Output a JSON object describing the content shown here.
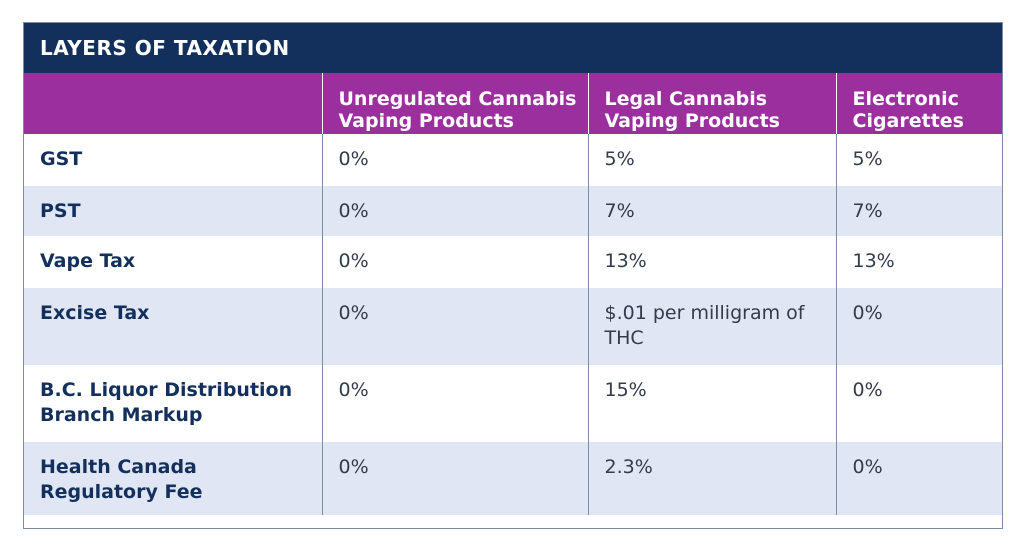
{
  "title": "LAYERS OF TAXATION",
  "columns": [
    "",
    "Unregulated Cannabis Vaping Products",
    "Legal Cannabis Vaping Products",
    "Electronic Cigarettes"
  ],
  "rows": [
    {
      "label": "GST",
      "values": [
        "0%",
        "5%",
        "5%"
      ]
    },
    {
      "label": "PST",
      "values": [
        "0%",
        "7%",
        "7%"
      ]
    },
    {
      "label": "Vape Tax",
      "values": [
        "0%",
        "13%",
        "13%"
      ]
    },
    {
      "label": "Excise Tax",
      "values": [
        "0%",
        "$.01 per milligram of THC",
        "0%"
      ]
    },
    {
      "label": "B.C. Liquor Distribution Branch Markup",
      "values": [
        "0%",
        "15%",
        "0%"
      ]
    },
    {
      "label": "Health Canada Regulatory Fee",
      "values": [
        "0%",
        "2.3%",
        "0%"
      ]
    }
  ],
  "colors": {
    "title_bg": "#13305c",
    "header_bg": "#9b2f9e",
    "stripe_bg": "#e0e6f3",
    "label_text": "#13305c"
  }
}
